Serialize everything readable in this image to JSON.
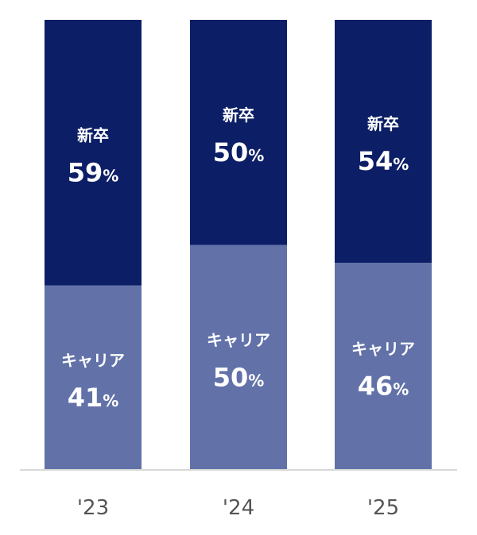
{
  "chart_data": {
    "type": "bar",
    "stacked": true,
    "categories": [
      "'23",
      "'24",
      "'25"
    ],
    "series": [
      {
        "name": "キャリア",
        "values": [
          41,
          50,
          46
        ],
        "color": "#6272a9"
      },
      {
        "name": "新卒",
        "values": [
          59,
          50,
          54
        ],
        "color": "#0c1f66"
      }
    ],
    "value_unit": "%",
    "ylim": [
      0,
      100
    ],
    "grid": false,
    "legend": "none",
    "axis_line_color": "#d9d9d9",
    "label_color": "#ffffff",
    "tick_label_color": "#555555"
  }
}
